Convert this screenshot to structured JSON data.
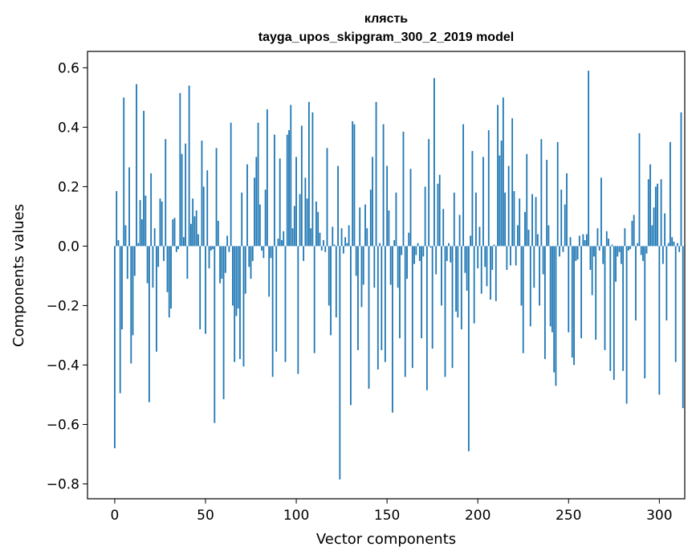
{
  "chart_data": {
    "type": "bar",
    "title": "клясть",
    "subtitle": "tayga_upos_skipgram_300_2_2019 model",
    "xlabel": "Vector components",
    "ylabel": "Components values",
    "xlim": [
      -15,
      314
    ],
    "ylim": [
      -0.85,
      0.655
    ],
    "xticks": [
      0,
      50,
      100,
      150,
      200,
      250,
      300
    ],
    "yticks": [
      -0.8,
      -0.6,
      -0.4,
      -0.2,
      0.0,
      0.2,
      0.4,
      0.6
    ],
    "xtick_labels": [
      "0",
      "50",
      "100",
      "150",
      "200",
      "250",
      "300"
    ],
    "ytick_labels": [
      "−0.8",
      "−0.6",
      "−0.4",
      "−0.2",
      "0.0",
      "0.2",
      "0.4",
      "0.6"
    ],
    "bar_color": "#1f77b4",
    "values": [
      -0.68,
      0.185,
      0.02,
      -0.495,
      -0.28,
      0.5,
      0.07,
      -0.11,
      0.265,
      -0.395,
      -0.3,
      -0.1,
      0.545,
      0.01,
      0.155,
      0.09,
      0.455,
      0.17,
      -0.125,
      -0.525,
      0.245,
      -0.14,
      0.06,
      -0.355,
      -0.07,
      0.16,
      0.15,
      -0.05,
      0.36,
      -0.155,
      -0.24,
      -0.21,
      0.09,
      0.095,
      -0.02,
      -0.01,
      0.515,
      0.31,
      0.03,
      0.345,
      -0.11,
      0.54,
      0.075,
      0.16,
      0.1,
      0.12,
      0.04,
      -0.28,
      0.355,
      0.2,
      -0.295,
      0.255,
      -0.075,
      -0.015,
      -0.01,
      -0.595,
      0.33,
      0.085,
      -0.125,
      -0.11,
      -0.515,
      -0.09,
      0.035,
      -0.02,
      0.415,
      -0.2,
      -0.39,
      -0.235,
      -0.21,
      -0.38,
      0.18,
      -0.405,
      -0.16,
      0.275,
      -0.07,
      -0.11,
      -0.05,
      0.23,
      0.3,
      0.415,
      0.14,
      -0.015,
      -0.04,
      0.19,
      0.46,
      -0.17,
      -0.04,
      -0.44,
      0.375,
      -0.355,
      0.025,
      0.295,
      0.02,
      0.05,
      -0.39,
      0.375,
      0.39,
      0.475,
      0.06,
      0.135,
      0.3,
      -0.43,
      0.175,
      0.405,
      -0.05,
      0.23,
      0.16,
      0.485,
      0.06,
      0.45,
      -0.36,
      0.15,
      0.115,
      0.045,
      -0.015,
      0.02,
      -0.02,
      0.33,
      -0.2,
      -0.3,
      0.065,
      0.005,
      -0.24,
      0.27,
      -0.785,
      0.06,
      -0.025,
      0.03,
      0.01,
      0.07,
      -0.535,
      0.42,
      0.41,
      -0.1,
      -0.35,
      0.13,
      -0.205,
      -0.13,
      0.14,
      0.06,
      -0.48,
      0.19,
      0.3,
      -0.14,
      0.485,
      -0.415,
      0.01,
      -0.35,
      0.41,
      -0.39,
      0.27,
      0.12,
      -0.13,
      -0.56,
      0.02,
      0.18,
      -0.14,
      -0.31,
      -0.03,
      0.385,
      -0.44,
      -0.11,
      0.045,
      0.26,
      -0.41,
      -0.06,
      -0.03,
      0.01,
      -0.05,
      -0.31,
      -0.035,
      0.2,
      -0.485,
      0.36,
      -0.005,
      -0.345,
      0.565,
      -0.095,
      0.21,
      0.24,
      -0.2,
      0.125,
      -0.44,
      -0.05,
      0.01,
      -0.055,
      -0.41,
      0.18,
      -0.22,
      -0.24,
      0.105,
      -0.28,
      0.41,
      -0.09,
      -0.15,
      -0.69,
      0.035,
      0.32,
      -0.26,
      0.18,
      -0.075,
      0.065,
      -0.16,
      0.3,
      -0.07,
      -0.135,
      0.39,
      -0.18,
      -0.08,
      0.005,
      -0.185,
      0.475,
      0.305,
      0.355,
      0.5,
      0.18,
      -0.08,
      0.27,
      -0.065,
      0.43,
      0.185,
      -0.065,
      0.07,
      0.16,
      -0.2,
      -0.36,
      0.115,
      0.31,
      0.055,
      -0.27,
      0.175,
      -0.14,
      0.165,
      0.04,
      -0.2,
      0.36,
      -0.095,
      -0.38,
      0.29,
      0.07,
      -0.27,
      -0.29,
      -0.425,
      -0.47,
      0.35,
      -0.035,
      0.19,
      -0.02,
      0.14,
      0.245,
      -0.29,
      0.03,
      -0.375,
      -0.4,
      -0.05,
      -0.045,
      0.035,
      -0.31,
      0.04,
      0.02,
      0.04,
      0.59,
      -0.08,
      -0.165,
      -0.035,
      -0.315,
      0.06,
      -0.015,
      0.23,
      -0.06,
      -0.35,
      0.05,
      0.025,
      -0.42,
      0.005,
      -0.45,
      -0.12,
      -0.035,
      -0.02,
      -0.06,
      -0.42,
      0.06,
      -0.53,
      -0.015,
      -0.01,
      0.085,
      0.105,
      -0.25,
      0.01,
      0.38,
      -0.03,
      -0.05,
      -0.445,
      -0.025,
      0.225,
      0.275,
      0.07,
      0.13,
      0.2,
      0.21,
      -0.5,
      0.225,
      -0.06,
      0.11,
      -0.25,
      0.01,
      0.35,
      0.03,
      0.015,
      -0.39,
      0.01,
      -0.02,
      0.45,
      -0.545
    ]
  }
}
